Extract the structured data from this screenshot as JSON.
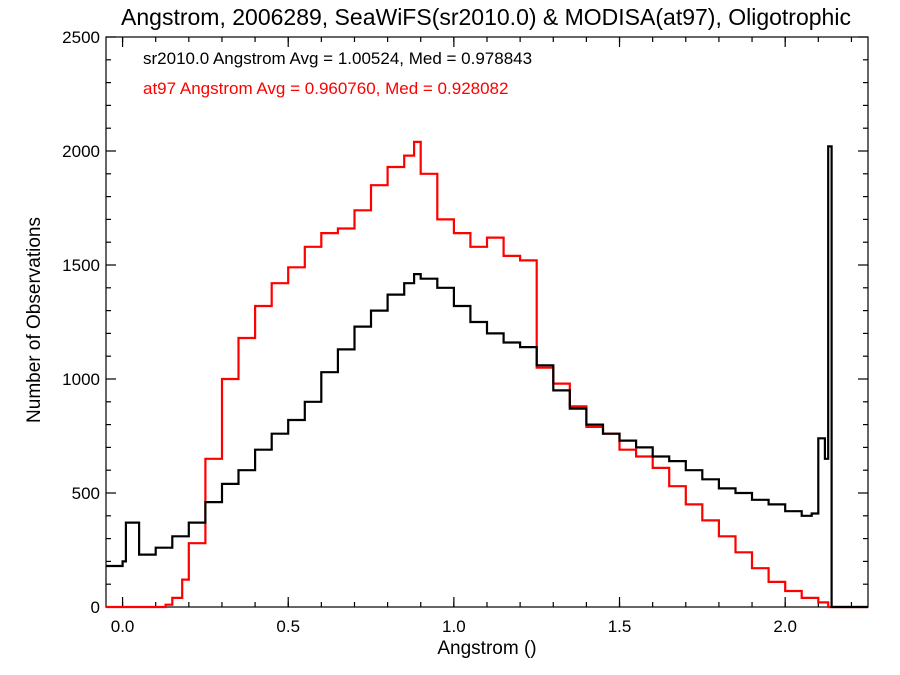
{
  "chart_data": {
    "type": "line",
    "title": "Angstrom, 2006289, SeaWiFS(sr2010.0) & MODISA(at97), Oligotrophic",
    "xlabel": "Angstrom ()",
    "ylabel": "Number of Observations",
    "xlim": [
      -0.05,
      2.25
    ],
    "ylim": [
      0,
      2500
    ],
    "x_ticks": [
      0.0,
      0.5,
      1.0,
      1.5,
      2.0
    ],
    "x_tick_labels": [
      "0.0",
      "0.5",
      "1.0",
      "1.5",
      "2.0"
    ],
    "y_ticks": [
      0,
      500,
      1000,
      1500,
      2000,
      2500
    ],
    "y_tick_labels": [
      "0",
      "500",
      "1000",
      "1500",
      "2000",
      "2500"
    ],
    "grid": false,
    "legend_placement": "top-left",
    "annotations": [
      {
        "text": "sr2010.0 Angstrom Avg = 1.00524, Med = 0.978843",
        "color": "#000000"
      },
      {
        "text": "at97 Angstrom Avg = 0.960760, Med = 0.928082",
        "color": "#ff0000"
      }
    ],
    "series": [
      {
        "color": "#000000",
        "x": [
          -0.05,
          0.0,
          0.01,
          0.05,
          0.1,
          0.15,
          0.2,
          0.25,
          0.3,
          0.35,
          0.4,
          0.45,
          0.5,
          0.55,
          0.6,
          0.65,
          0.7,
          0.75,
          0.8,
          0.85,
          0.88,
          0.9,
          0.95,
          1.0,
          1.05,
          1.1,
          1.15,
          1.2,
          1.25,
          1.3,
          1.35,
          1.4,
          1.45,
          1.5,
          1.55,
          1.6,
          1.65,
          1.7,
          1.75,
          1.8,
          1.85,
          1.9,
          1.95,
          2.0,
          2.05,
          2.08,
          2.1,
          2.12,
          2.13,
          2.135,
          2.14,
          2.145,
          2.15,
          2.2,
          2.25
        ],
        "values": [
          180,
          200,
          370,
          230,
          260,
          310,
          370,
          460,
          540,
          600,
          690,
          760,
          820,
          900,
          1030,
          1130,
          1230,
          1300,
          1370,
          1420,
          1460,
          1440,
          1400,
          1320,
          1250,
          1200,
          1160,
          1140,
          1060,
          950,
          870,
          800,
          760,
          730,
          700,
          660,
          640,
          600,
          560,
          520,
          500,
          470,
          450,
          420,
          400,
          410,
          740,
          650,
          2020,
          2020,
          0,
          0,
          0,
          0,
          0
        ]
      },
      {
        "color": "#ff0000",
        "x": [
          -0.05,
          0.1,
          0.13,
          0.15,
          0.18,
          0.2,
          0.25,
          0.3,
          0.35,
          0.4,
          0.45,
          0.5,
          0.55,
          0.6,
          0.65,
          0.7,
          0.75,
          0.8,
          0.85,
          0.88,
          0.9,
          0.95,
          1.0,
          1.05,
          1.1,
          1.15,
          1.2,
          1.25,
          1.3,
          1.35,
          1.4,
          1.45,
          1.5,
          1.55,
          1.6,
          1.65,
          1.7,
          1.75,
          1.8,
          1.85,
          1.9,
          1.95,
          2.0,
          2.05,
          2.1,
          2.13,
          2.2,
          2.25
        ],
        "values": [
          0,
          0,
          10,
          40,
          120,
          280,
          650,
          1000,
          1180,
          1320,
          1420,
          1490,
          1580,
          1640,
          1660,
          1740,
          1850,
          1930,
          1980,
          2040,
          1900,
          1700,
          1640,
          1580,
          1620,
          1540,
          1520,
          1050,
          980,
          880,
          790,
          760,
          690,
          660,
          610,
          530,
          450,
          380,
          310,
          240,
          170,
          110,
          70,
          40,
          20,
          0,
          0,
          0
        ]
      }
    ]
  }
}
